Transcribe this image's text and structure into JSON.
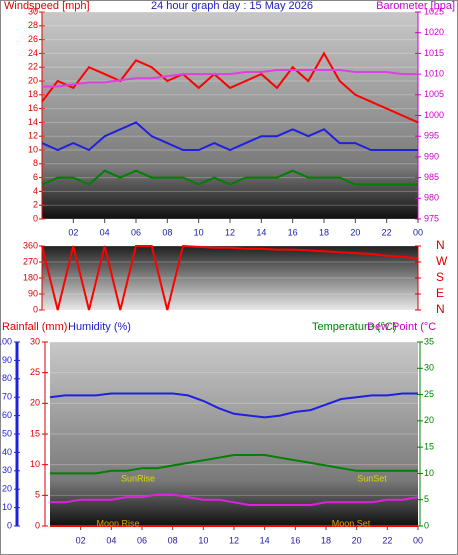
{
  "chart_data": [
    {
      "type": "line",
      "title": "24 hour graph day : 15 May 2026",
      "y_label": "Windspeed [mph]",
      "y2_label": "Barometer [hpa]",
      "x": [
        0,
        1,
        2,
        3,
        4,
        5,
        6,
        7,
        8,
        9,
        10,
        11,
        12,
        13,
        14,
        15,
        16,
        17,
        18,
        19,
        20,
        21,
        22,
        23,
        24
      ],
      "xlim": [
        0,
        24
      ],
      "xticks": [
        {
          "value": 2,
          "label": "02"
        },
        {
          "value": 4,
          "label": "04"
        },
        {
          "value": 6,
          "label": "06"
        },
        {
          "value": 8,
          "label": "08"
        },
        10,
        12,
        14,
        16,
        18,
        20,
        22,
        {
          "value": 24,
          "label": "00"
        }
      ],
      "ylim": [
        0,
        30
      ],
      "yticks": [
        0,
        2,
        4,
        6,
        8,
        10,
        12,
        14,
        16,
        18,
        20,
        22,
        24,
        26,
        28,
        30
      ],
      "y2lim": [
        975,
        1025
      ],
      "y2ticks": [
        975,
        980,
        985,
        990,
        995,
        1000,
        1005,
        1010,
        1015,
        1020,
        1025
      ],
      "grid": true,
      "series": [
        {
          "color": "#ff0000",
          "values": [
            17,
            20,
            19,
            22,
            21,
            20,
            23,
            22,
            20,
            21,
            19,
            21,
            19,
            20,
            21,
            19,
            22,
            20,
            24,
            20,
            18,
            17,
            16,
            15,
            14
          ]
        },
        {
          "color": "#2020e0",
          "values": [
            11,
            10,
            11,
            10,
            12,
            13,
            14,
            12,
            11,
            10,
            10,
            11,
            10,
            11,
            12,
            12,
            13,
            12,
            13,
            11,
            11,
            10,
            10,
            10,
            10
          ]
        },
        {
          "color": "#008000",
          "values": [
            5,
            6,
            6,
            5,
            7,
            6,
            7,
            6,
            6,
            6,
            5,
            6,
            5,
            6,
            6,
            6,
            7,
            6,
            6,
            6,
            5,
            5,
            5,
            5,
            5
          ]
        },
        {
          "color": "#e040e0",
          "axis": "y2",
          "values": [
            1007,
            1007,
            1007.5,
            1008,
            1008,
            1008.5,
            1009,
            1009,
            1009.5,
            1010,
            1010,
            1010,
            1010,
            1010.5,
            1010.5,
            1011,
            1011,
            1011,
            1011,
            1011,
            1010.5,
            1010.5,
            1010.5,
            1010,
            1010
          ]
        }
      ]
    },
    {
      "type": "line",
      "x": [
        0,
        1,
        2,
        3,
        4,
        5,
        6,
        7,
        8,
        9,
        10,
        11,
        12,
        13,
        14,
        15,
        16,
        17,
        18,
        19,
        20,
        21,
        22,
        23,
        24
      ],
      "xlim": [
        0,
        24
      ],
      "ylim": [
        0,
        360
      ],
      "yticks": [
        0,
        90,
        180,
        270,
        360
      ],
      "y2lim": [
        0,
        360
      ],
      "y2ticks": [
        {
          "value": 360,
          "label": "N"
        },
        {
          "value": 270,
          "label": "W"
        },
        {
          "value": 180,
          "label": "S"
        },
        {
          "value": 90,
          "label": "E"
        },
        {
          "value": 0,
          "label": "N"
        }
      ],
      "grid": true,
      "series": [
        {
          "color": "#ff0000",
          "values": [
            360,
            0,
            360,
            0,
            360,
            0,
            360,
            360,
            0,
            360,
            355,
            350,
            350,
            345,
            345,
            340,
            340,
            335,
            330,
            325,
            320,
            315,
            305,
            300,
            290
          ]
        }
      ]
    },
    {
      "type": "line",
      "y_label": "Rainfall (mm)",
      "y3_label": "Humidity (%)",
      "y2_label": "Temperature (°C)",
      "y2_label_b": "Dew Point (°C",
      "x": [
        0,
        1,
        2,
        3,
        4,
        5,
        6,
        7,
        8,
        9,
        10,
        11,
        12,
        13,
        14,
        15,
        16,
        17,
        18,
        19,
        20,
        21,
        22,
        23,
        24
      ],
      "xlim": [
        0,
        24
      ],
      "xticks": [
        {
          "value": 2,
          "label": "02"
        },
        {
          "value": 4,
          "label": "04"
        },
        {
          "value": 6,
          "label": "06"
        },
        {
          "value": 8,
          "label": "08"
        },
        10,
        12,
        14,
        16,
        18,
        20,
        22,
        {
          "value": 24,
          "label": "00"
        }
      ],
      "ylim": [
        0,
        30
      ],
      "yticks": [
        0,
        5,
        10,
        15,
        20,
        25,
        30
      ],
      "y3lim": [
        0,
        100
      ],
      "y3ticks": [
        0,
        10,
        20,
        30,
        40,
        50,
        60,
        70,
        80,
        90,
        100
      ],
      "y2lim": [
        0,
        35
      ],
      "y2ticks": [
        0,
        5,
        10,
        15,
        20,
        25,
        30,
        35
      ],
      "grid": true,
      "annotations": [
        "SunRise",
        "SunSet",
        "Moon Rise",
        "Moon Set"
      ],
      "series": [
        {
          "color": "#2020e0",
          "axis": "y3",
          "values": [
            70,
            71,
            71,
            71,
            72,
            72,
            72,
            72,
            72,
            71,
            68,
            64,
            61,
            60,
            59,
            60,
            62,
            63,
            66,
            69,
            70,
            71,
            71,
            72,
            72
          ]
        },
        {
          "color": "#008000",
          "axis": "y2",
          "values": [
            10,
            10,
            10,
            10,
            10.5,
            10.5,
            11,
            11,
            11.5,
            12,
            12.5,
            13,
            13.5,
            13.5,
            13.5,
            13,
            12.5,
            12,
            11.5,
            11,
            10.5,
            10.5,
            10.5,
            10.5,
            10.5
          ]
        },
        {
          "color": "#e020e0",
          "axis": "y2",
          "values": [
            4.5,
            4.5,
            5,
            5,
            5,
            5.5,
            5.5,
            6,
            6,
            5.5,
            5,
            5,
            4.5,
            4,
            4,
            4,
            4,
            4,
            4.5,
            4.5,
            4.5,
            4.5,
            5,
            5,
            5.5
          ]
        },
        {
          "color": "#ff0000",
          "values": [
            0,
            0,
            0,
            0,
            0,
            0,
            0,
            0,
            0,
            0,
            0,
            0,
            0,
            0,
            0,
            0,
            0,
            0,
            0,
            0,
            0,
            0,
            0,
            0,
            0
          ]
        }
      ]
    }
  ]
}
